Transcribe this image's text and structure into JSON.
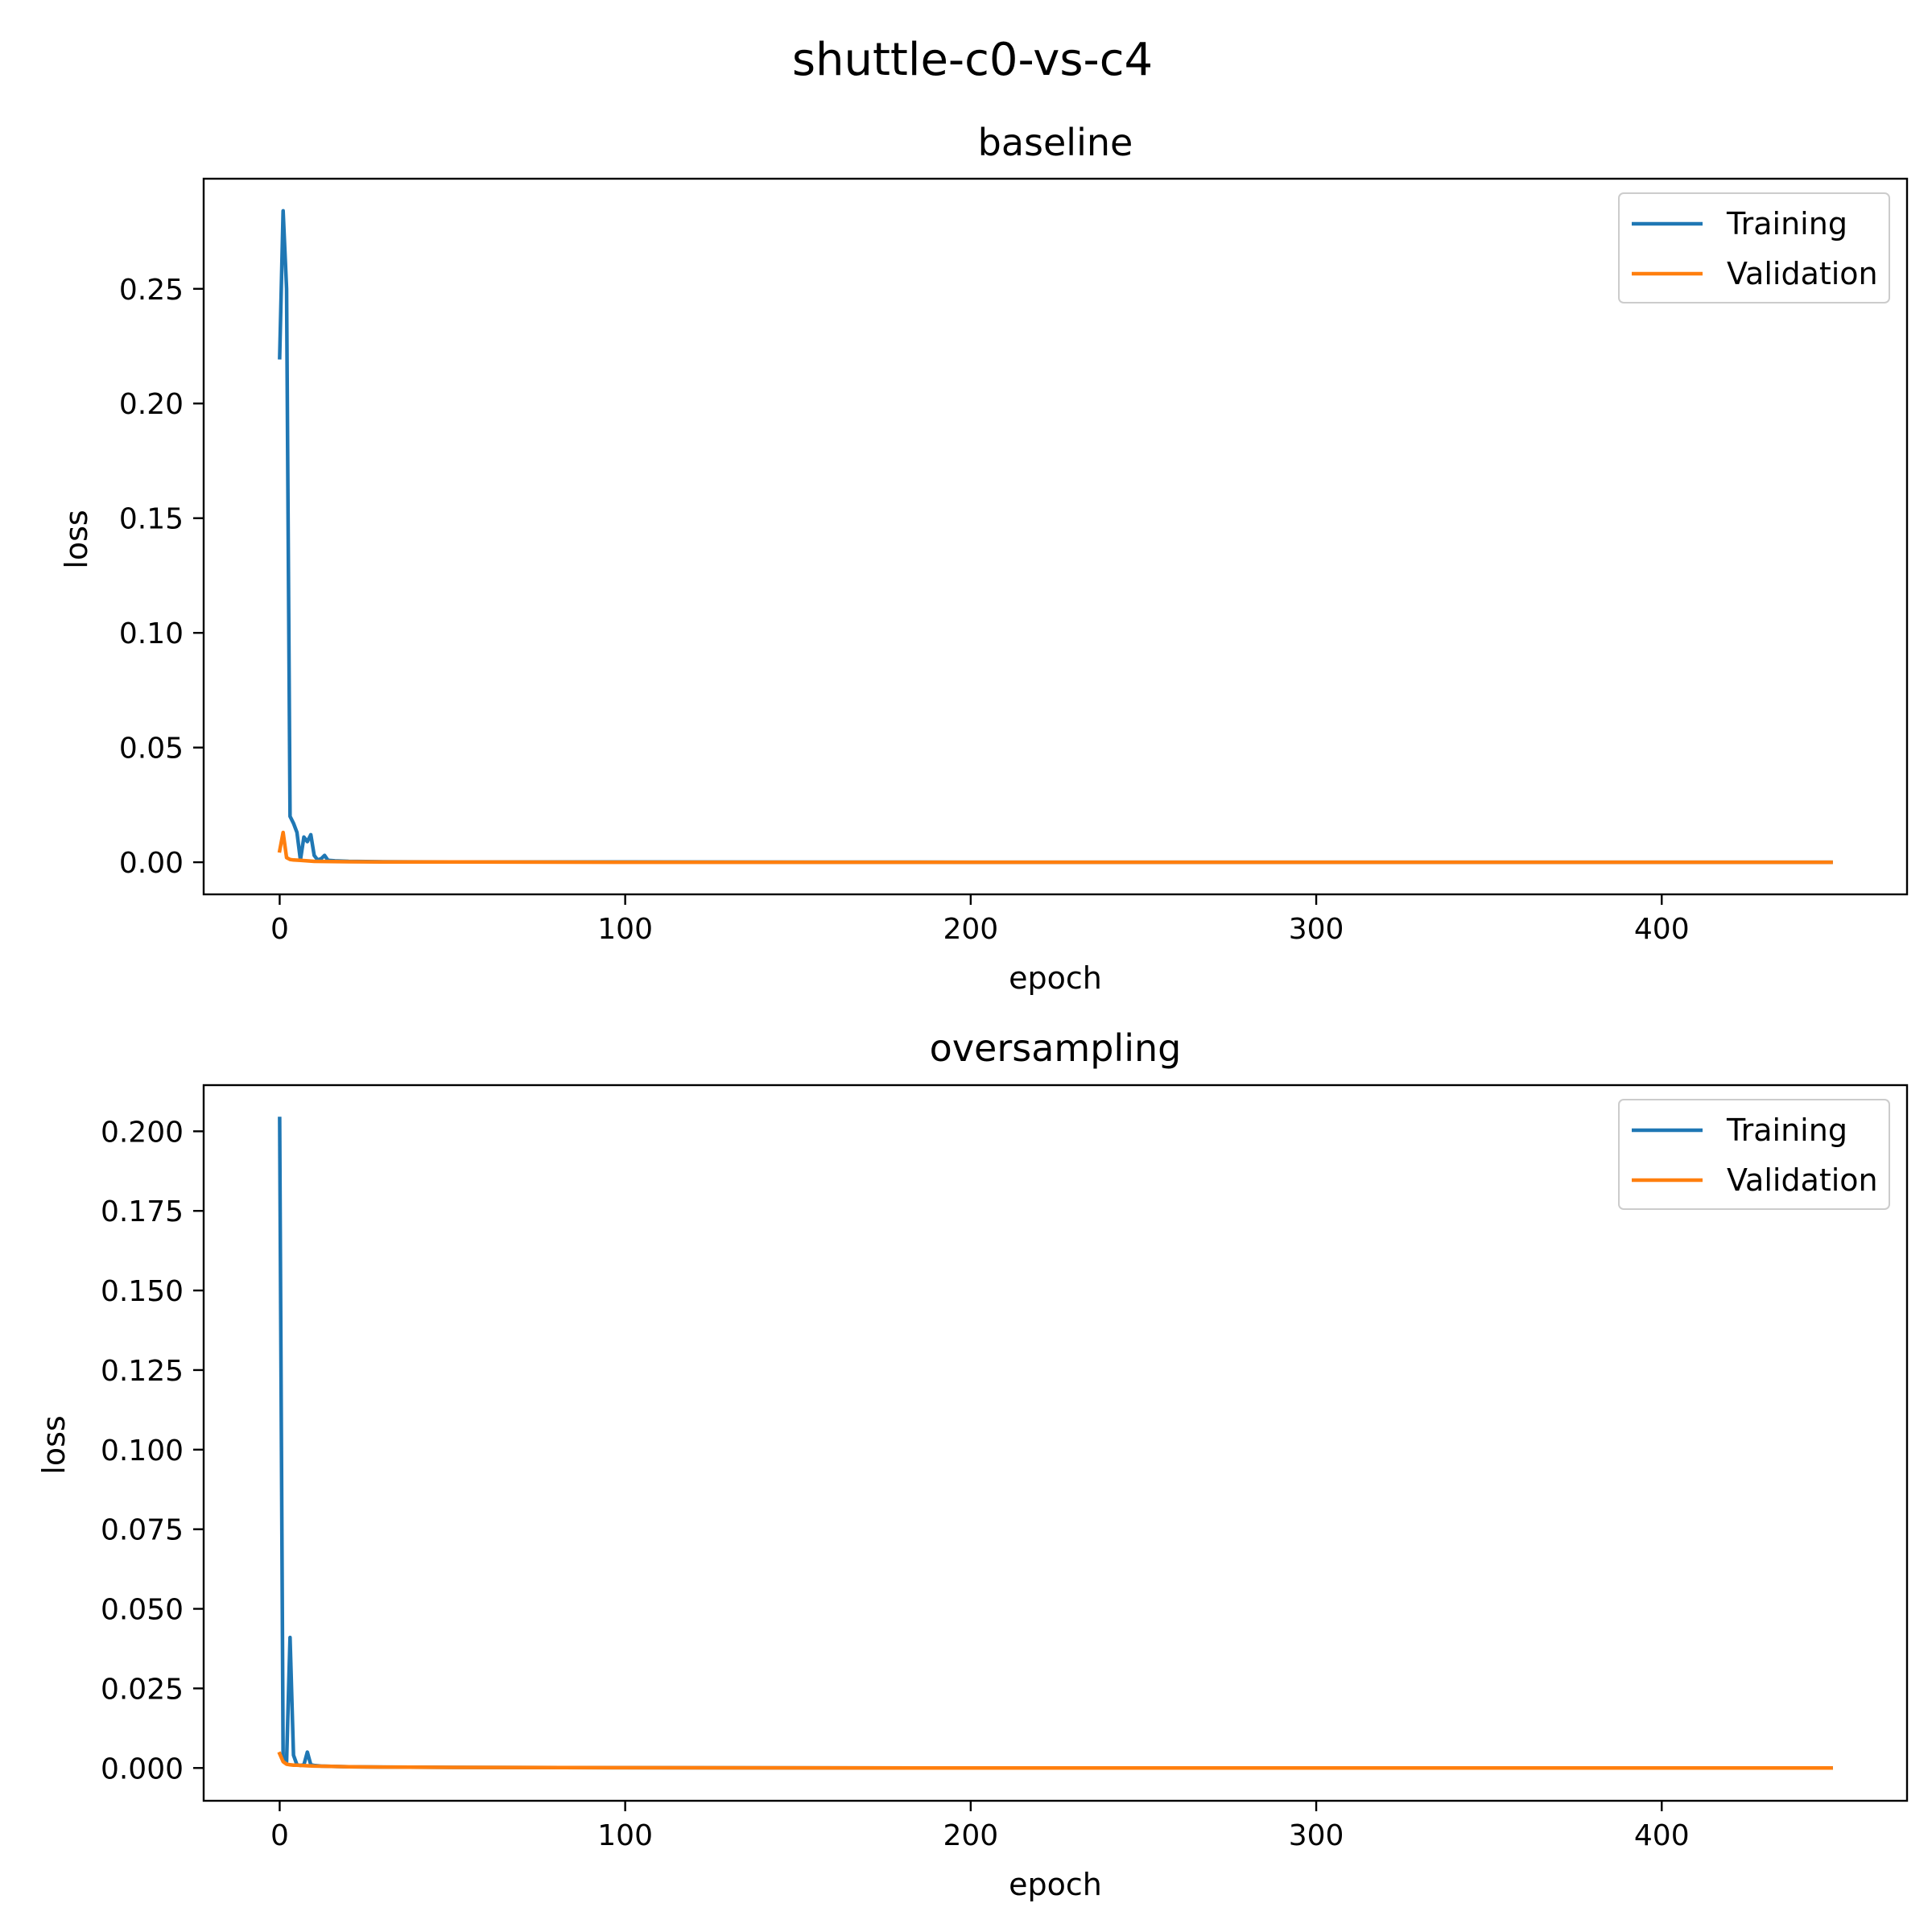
{
  "figure": {
    "suptitle": "shuttle-c0-vs-c4"
  },
  "chart_data": [
    {
      "type": "line",
      "title": "baseline",
      "xlabel": "epoch",
      "ylabel": "loss",
      "xlim": [
        -22,
        471
      ],
      "ylim": [
        -0.014,
        0.298
      ],
      "xticks": [
        0,
        100,
        200,
        300,
        400
      ],
      "xtick_labels": [
        "0",
        "100",
        "200",
        "300",
        "400"
      ],
      "yticks": [
        0.0,
        0.05,
        0.1,
        0.15,
        0.2,
        0.25
      ],
      "ytick_labels": [
        "0.00",
        "0.05",
        "0.10",
        "0.15",
        "0.20",
        "0.25"
      ],
      "grid": false,
      "legend_position": "top-right",
      "series": [
        {
          "name": "Training",
          "color": "#1f77b4",
          "x": [
            0,
            1,
            2,
            3,
            4,
            5,
            6,
            7,
            8,
            9,
            10,
            11,
            12,
            13,
            14,
            16,
            20,
            30,
            50,
            100,
            200,
            300,
            400,
            449
          ],
          "y": [
            0.22,
            0.284,
            0.25,
            0.02,
            0.017,
            0.013,
            0.001,
            0.011,
            0.009,
            0.012,
            0.003,
            0.001,
            0.0015,
            0.003,
            0.0008,
            0.0006,
            0.0004,
            0.0002,
            0.0001,
            0.0001,
            0.0,
            0.0,
            0.0,
            0.0
          ]
        },
        {
          "name": "Validation",
          "color": "#ff7f0e",
          "x": [
            0,
            1,
            2,
            3,
            4,
            6,
            8,
            10,
            15,
            20,
            30,
            50,
            100,
            200,
            300,
            400,
            449
          ],
          "y": [
            0.005,
            0.013,
            0.002,
            0.0012,
            0.001,
            0.0008,
            0.0006,
            0.0004,
            0.0003,
            0.0002,
            0.0001,
            0.0001,
            0.0,
            0.0,
            0.0,
            0.0,
            0.0
          ]
        }
      ]
    },
    {
      "type": "line",
      "title": "oversampling",
      "xlabel": "epoch",
      "ylabel": "loss",
      "xlim": [
        -22,
        471
      ],
      "ylim": [
        -0.0103,
        0.2145
      ],
      "xticks": [
        0,
        100,
        200,
        300,
        400
      ],
      "xtick_labels": [
        "0",
        "100",
        "200",
        "300",
        "400"
      ],
      "yticks": [
        0.0,
        0.025,
        0.05,
        0.075,
        0.1,
        0.125,
        0.15,
        0.175,
        0.2
      ],
      "ytick_labels": [
        "0.000",
        "0.025",
        "0.050",
        "0.075",
        "0.100",
        "0.125",
        "0.150",
        "0.175",
        "0.200"
      ],
      "grid": false,
      "legend_position": "top-right",
      "series": [
        {
          "name": "Training",
          "color": "#1f77b4",
          "x": [
            0,
            1,
            2,
            3,
            4,
            5,
            6,
            7,
            8,
            9,
            10,
            12,
            15,
            20,
            30,
            50,
            100,
            200,
            300,
            400,
            449
          ],
          "y": [
            0.204,
            0.003,
            0.002,
            0.041,
            0.004,
            0.001,
            0.0008,
            0.001,
            0.005,
            0.001,
            0.0008,
            0.0006,
            0.0005,
            0.0004,
            0.0003,
            0.0002,
            0.0001,
            0.0,
            0.0,
            0.0,
            0.0
          ]
        },
        {
          "name": "Validation",
          "color": "#ff7f0e",
          "x": [
            0,
            1,
            2,
            3,
            4,
            5,
            8,
            10,
            15,
            20,
            30,
            50,
            100,
            200,
            300,
            400,
            449
          ],
          "y": [
            0.0045,
            0.002,
            0.0012,
            0.001,
            0.0009,
            0.0009,
            0.0007,
            0.0006,
            0.0005,
            0.0004,
            0.0003,
            0.0002,
            0.0001,
            0.0,
            0.0,
            0.0,
            0.0
          ]
        }
      ]
    }
  ]
}
